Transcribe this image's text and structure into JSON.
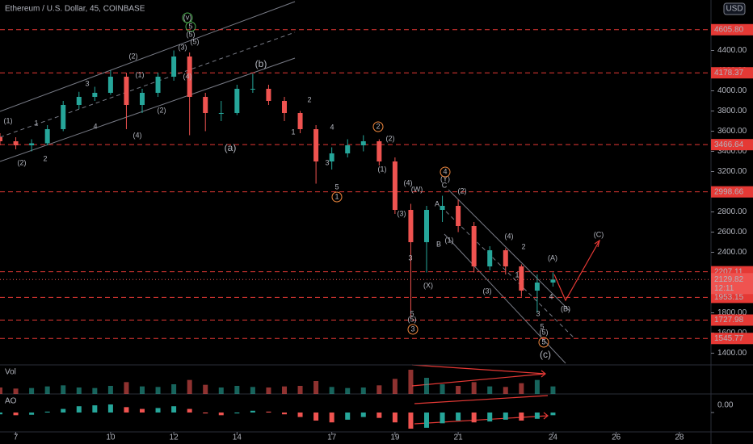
{
  "chart_data": {
    "type": "candlestick",
    "title": "Ethereum / U.S. Dollar, 45, COINBASE",
    "currency": "USD",
    "x": [
      6.5,
      7,
      7.5,
      8,
      8.5,
      9,
      9.5,
      10,
      10.5,
      11,
      11.5,
      12,
      12.5,
      13,
      13.5,
      14,
      14.5,
      15,
      15.5,
      16,
      16.5,
      17,
      17.5,
      18,
      18.5,
      19,
      19.5,
      20,
      20.5,
      21,
      21.5,
      22,
      22.5,
      23,
      23.5,
      24
    ],
    "open": [
      3540,
      3500,
      3460,
      3480,
      3620,
      3860,
      3940,
      3980,
      4140,
      3860,
      3980,
      4140,
      4340,
      3940,
      3780,
      3780,
      4020,
      4020,
      3900,
      3780,
      3620,
      3300,
      3380,
      3460,
      3500,
      3300,
      2820,
      2500,
      2820,
      2860,
      2660,
      2260,
      2420,
      2260,
      2020,
      2100
    ],
    "high": [
      3580,
      3540,
      3520,
      3660,
      3900,
      3990,
      4040,
      4200,
      4180,
      4020,
      4180,
      4400,
      4380,
      3980,
      3900,
      4060,
      4170,
      4060,
      3940,
      3800,
      3660,
      3440,
      3520,
      3560,
      3520,
      3340,
      2880,
      2860,
      2960,
      2920,
      2700,
      2460,
      2440,
      2280,
      2180,
      2200
    ],
    "low": [
      3460,
      3420,
      3400,
      3460,
      3600,
      3820,
      3900,
      3960,
      3620,
      3780,
      3940,
      4100,
      3560,
      3600,
      3700,
      3760,
      3980,
      3860,
      3700,
      3580,
      3080,
      3220,
      3340,
      3400,
      3260,
      2780,
      1740,
      2200,
      2700,
      2600,
      2200,
      2220,
      2180,
      1960,
      1800,
      2060
    ],
    "close": [
      3500,
      3460,
      3480,
      3620,
      3860,
      3940,
      3980,
      4140,
      3860,
      3980,
      4140,
      4340,
      3940,
      3780,
      3780,
      4020,
      4020,
      3900,
      3780,
      3620,
      3300,
      3380,
      3460,
      3500,
      3300,
      2820,
      2500,
      2820,
      2860,
      2660,
      2260,
      2420,
      2260,
      2020,
      2100,
      2130
    ],
    "volume": [
      12,
      10,
      11,
      14,
      16,
      12,
      11,
      15,
      22,
      14,
      13,
      18,
      26,
      17,
      12,
      15,
      13,
      12,
      14,
      15,
      24,
      13,
      11,
      12,
      16,
      28,
      45,
      30,
      18,
      15,
      22,
      14,
      13,
      20,
      26,
      14
    ],
    "ao": [
      -20,
      -30,
      -25,
      10,
      40,
      70,
      80,
      90,
      60,
      40,
      50,
      70,
      40,
      -10,
      -30,
      -10,
      20,
      10,
      -20,
      -50,
      -90,
      -110,
      -80,
      -50,
      -60,
      -110,
      -180,
      -170,
      -120,
      -90,
      -110,
      -100,
      -80,
      -90,
      -70,
      -30
    ],
    "xlim": [
      6.5,
      29
    ],
    "ylim": [
      1300,
      4900
    ],
    "xticks": [
      7,
      10,
      12,
      14,
      17,
      19,
      21,
      24,
      26,
      28
    ],
    "yticks": [
      {
        "value": 1400,
        "label": "1400.00"
      },
      {
        "value": 1600,
        "label": "1600.00"
      },
      {
        "value": 1800,
        "label": "1800.00"
      },
      {
        "value": 2400,
        "label": "2400.00"
      },
      {
        "value": 2600,
        "label": "2600.00"
      },
      {
        "value": 2800,
        "label": "2800.00"
      },
      {
        "value": 3200,
        "label": "3200.00"
      },
      {
        "value": 3400,
        "label": "3400.00"
      },
      {
        "value": 3600,
        "label": "3600.00"
      },
      {
        "value": 3800,
        "label": "3800.00"
      },
      {
        "value": 4000,
        "label": "4000.00"
      },
      {
        "value": 4200,
        "label": "4200.00"
      },
      {
        "value": 4400,
        "label": "4400.00"
      }
    ],
    "price_levels": [
      {
        "value": 4605.8,
        "label": "4605.80"
      },
      {
        "value": 4178.37,
        "label": "4178.37"
      },
      {
        "value": 3466.64,
        "label": "3466.64"
      },
      {
        "value": 2998.66,
        "label": "2998.66"
      },
      {
        "value": 2207.11,
        "label": "2207.11"
      },
      {
        "value": 1953.15,
        "label": "1953.15"
      },
      {
        "value": 1727.98,
        "label": "1727.98"
      },
      {
        "value": 1545.77,
        "label": "1545.77"
      }
    ],
    "last_price": {
      "value": 2129.82,
      "label": "2129.82"
    },
    "countdown": "12:11",
    "up_color": "#26a69a",
    "down_color": "#ef5350",
    "level_color": "#e53935",
    "volume_label": "Vol",
    "ao_label": "AO",
    "ao_ticks": [
      {
        "value": 0,
        "label": "0.00"
      }
    ],
    "wave_labels": [
      "(v)",
      "5",
      "(5)",
      "(2)",
      "3",
      "4",
      "(4)",
      "(1)",
      "1",
      "(2)",
      "2",
      "(2)",
      "(1)",
      "(4)",
      "(3)",
      "3",
      "5",
      "(5)",
      "(1)",
      "(2)",
      "(4)",
      "(3)",
      "(A)",
      "(B)",
      "(C)",
      "4",
      "(5)",
      "(3)",
      "(5)",
      "(1)",
      "(2)",
      "(4)",
      "(b)",
      "(a)",
      "(W)",
      "(Y)",
      "(X)",
      "(c)",
      "2",
      "1",
      "4",
      "3",
      "5",
      "1",
      "2",
      "4",
      "C",
      "A",
      "B",
      "2",
      "1",
      "3",
      "5",
      "3",
      "5"
    ]
  }
}
